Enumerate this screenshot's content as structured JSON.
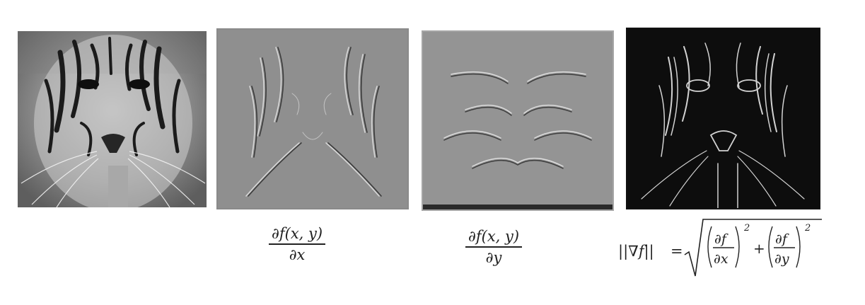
{
  "panels": [
    {
      "name": "original-image",
      "caption": ""
    },
    {
      "name": "x-derivative-image",
      "caption": "∂f(x, y) / ∂x"
    },
    {
      "name": "y-derivative-image",
      "caption": "∂f(x, y) / ∂y"
    },
    {
      "name": "gradient-magnitude-image",
      "caption": "||∇f|| = sqrt((∂f/∂x)^2 + (∂f/∂y)^2)"
    }
  ],
  "formulas": {
    "dx": {
      "numerator": "∂f(x, y)",
      "denominator": "∂x"
    },
    "dy": {
      "numerator": "∂f(x, y)",
      "denominator": "∂y"
    },
    "magnitude": {
      "lhs": "||∇f||",
      "equals": "=",
      "term1_num": "∂f",
      "term1_den": "∂x",
      "term2_num": "∂f",
      "term2_den": "∂y",
      "plus": "+",
      "exponent": "2"
    }
  }
}
